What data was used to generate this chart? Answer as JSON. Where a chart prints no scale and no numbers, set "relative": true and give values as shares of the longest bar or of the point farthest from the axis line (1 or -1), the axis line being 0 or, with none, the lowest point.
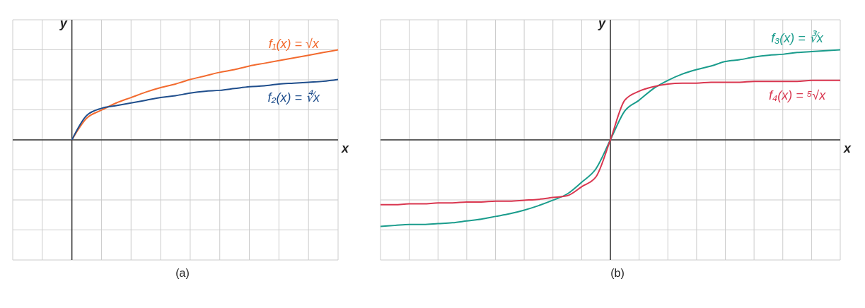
{
  "chart_data": [
    {
      "type": "line",
      "relative": true,
      "grid": true,
      "xlabel": "x",
      "ylabel": "y",
      "annotations": [
        "(a)"
      ],
      "categories": [
        null,
        null,
        null,
        null,
        null,
        null,
        null,
        null,
        null,
        null,
        null,
        null,
        null,
        null,
        null,
        null,
        null,
        null,
        null,
        null,
        null,
        null,
        null
      ],
      "series": [
        {
          "name": "f₁(x) = √x",
          "color": "#f26a2e",
          "values": [
            null,
            null,
            null,
            null,
            0,
            0.24,
            0.33,
            0.41,
            0.47,
            0.53,
            0.58,
            0.62,
            0.67,
            0.71,
            0.75,
            0.78,
            0.82,
            0.85,
            0.88,
            0.91,
            0.94,
            0.97,
            1
          ]
        },
        {
          "name": "f₂(x) = ∜x",
          "color": "#1f4e8c",
          "values": [
            null,
            null,
            null,
            null,
            0,
            0.27,
            0.35,
            0.38,
            0.41,
            0.44,
            0.47,
            0.49,
            0.52,
            0.54,
            0.55,
            0.57,
            0.59,
            0.6,
            0.62,
            0.63,
            0.64,
            0.65,
            0.67
          ]
        }
      ]
    },
    {
      "type": "line",
      "relative": true,
      "grid": true,
      "xlabel": "x",
      "ylabel": "y",
      "annotations": [
        "(b)"
      ],
      "categories": [
        null,
        null,
        null,
        null,
        null,
        null,
        null,
        null,
        null,
        null,
        null,
        null,
        null,
        null,
        null,
        null,
        null,
        null,
        null,
        null,
        null,
        null,
        null,
        null,
        null,
        null,
        null,
        null,
        null,
        null,
        null,
        null,
        null
      ],
      "series": [
        {
          "name": "f₃(x) = ∛x",
          "color": "#1a9c8c",
          "values": [
            -0.96,
            -0.95,
            -0.94,
            -0.94,
            -0.93,
            -0.92,
            -0.9,
            -0.88,
            -0.85,
            -0.82,
            -0.78,
            -0.73,
            -0.67,
            -0.6,
            -0.47,
            -0.32,
            0,
            0.32,
            0.44,
            0.57,
            0.66,
            0.73,
            0.78,
            0.82,
            0.87,
            0.89,
            0.92,
            0.94,
            0.95,
            0.97,
            0.98,
            0.99,
            1
          ]
        },
        {
          "name": "f₄(x) = ⁵√x",
          "color": "#d9364f",
          "values": [
            -0.72,
            -0.72,
            -0.71,
            -0.71,
            -0.7,
            -0.7,
            -0.69,
            -0.69,
            -0.68,
            -0.68,
            -0.67,
            -0.66,
            -0.64,
            -0.62,
            -0.52,
            -0.41,
            0,
            0.44,
            0.54,
            0.59,
            0.62,
            0.63,
            0.63,
            0.64,
            0.64,
            0.64,
            0.65,
            0.65,
            0.65,
            0.65,
            0.66,
            0.66,
            0.66
          ]
        }
      ]
    }
  ]
}
